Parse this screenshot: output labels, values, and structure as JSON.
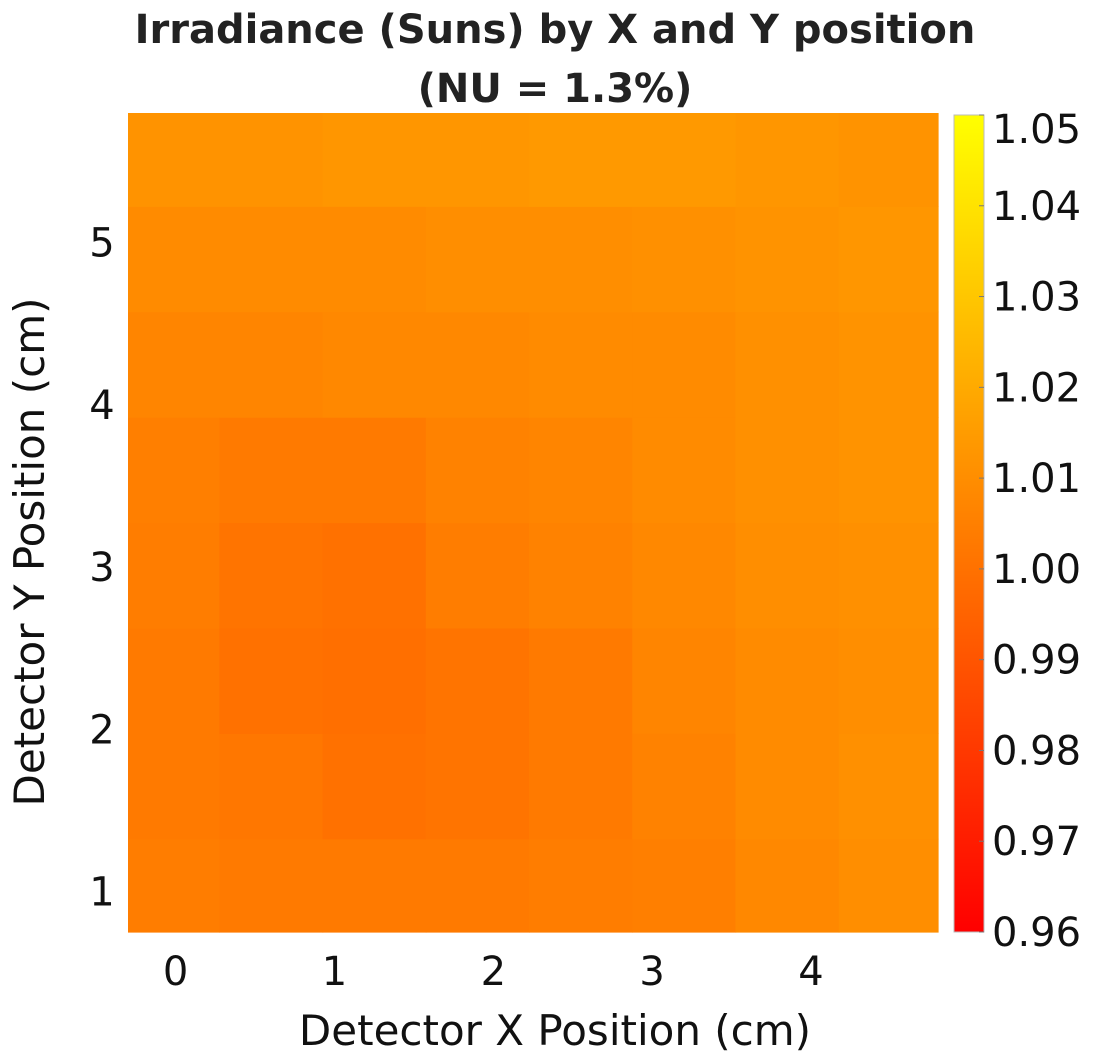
{
  "chart_data": {
    "type": "heatmap",
    "title": "Irradiance (Suns) by X and Y position",
    "subtitle": "(NU = 1.3%)",
    "xlabel": "Detector X Position (cm)",
    "ylabel": "Detector Y Position (cm)",
    "x_ticks": [
      "0",
      "1",
      "2",
      "3",
      "4"
    ],
    "y_ticks": [
      "1",
      "2",
      "3",
      "4",
      "5"
    ],
    "x_ticks_values": [
      0,
      1,
      2,
      3,
      4
    ],
    "y_ticks_values": [
      1,
      2,
      3,
      4,
      5
    ],
    "xlim": [
      -0.3,
      4.8
    ],
    "ylim": [
      0.75,
      5.8
    ],
    "cells_x": [
      -0.05,
      0.6,
      1.25,
      1.9,
      2.55,
      3.2,
      3.85,
      4.5
    ],
    "cells_y": [
      1.0,
      1.65,
      2.3,
      2.95,
      3.6,
      4.25,
      4.9,
      5.55
    ],
    "z": [
      [
        1.004,
        1.003,
        1.003,
        1.003,
        1.004,
        1.005,
        1.008,
        1.01
      ],
      [
        1.003,
        1.002,
        1.0,
        1.001,
        1.003,
        1.006,
        1.009,
        1.011
      ],
      [
        1.003,
        1.0,
        0.999,
        1.001,
        1.003,
        1.007,
        1.009,
        1.01
      ],
      [
        1.004,
        1.001,
        1.0,
        1.004,
        1.006,
        1.008,
        1.01,
        1.011
      ],
      [
        1.005,
        1.003,
        1.003,
        1.006,
        1.007,
        1.009,
        1.011,
        1.012
      ],
      [
        1.007,
        1.007,
        1.008,
        1.008,
        1.009,
        1.009,
        1.011,
        1.012
      ],
      [
        1.009,
        1.009,
        1.009,
        1.01,
        1.01,
        1.011,
        1.012,
        1.013
      ],
      [
        1.012,
        1.012,
        1.013,
        1.013,
        1.014,
        1.014,
        1.013,
        1.012
      ]
    ],
    "colorbar": {
      "min": 0.96,
      "max": 1.05,
      "ticks": [
        "1.05",
        "1.04",
        "1.03",
        "1.02",
        "1.01",
        "1.00",
        "0.99",
        "0.98",
        "0.97",
        "0.96"
      ],
      "ticks_values": [
        1.05,
        1.04,
        1.03,
        1.02,
        1.01,
        1.0,
        0.99,
        0.98,
        0.97,
        0.96
      ],
      "colors": [
        "#ff0000",
        "#ffff00"
      ]
    },
    "grid": false,
    "legend": "colorbar-right"
  }
}
